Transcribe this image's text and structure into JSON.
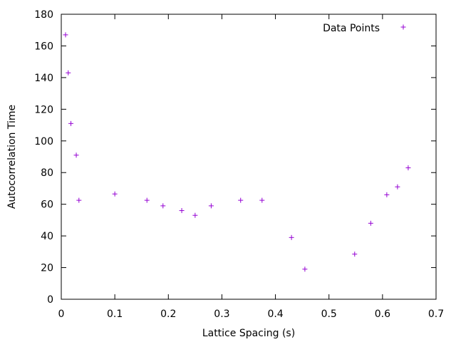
{
  "chart_data": {
    "type": "scatter",
    "xlabel": "Lattice Spacing (s)",
    "ylabel": "Autocorrelation Time",
    "xlim": [
      0,
      0.7
    ],
    "ylim": [
      0,
      180
    ],
    "x_ticks": [
      "0",
      "0.1",
      "0.2",
      "0.3",
      "0.4",
      "0.5",
      "0.6",
      "0.7"
    ],
    "y_ticks": [
      "0",
      "20",
      "40",
      "60",
      "80",
      "100",
      "120",
      "140",
      "160",
      "180"
    ],
    "legend_position": "top-right",
    "grid": false,
    "marker": "plus",
    "series": [
      {
        "name": "Data Points",
        "color": "#9400d3",
        "points": [
          {
            "x": 0.008,
            "y": 167
          },
          {
            "x": 0.013,
            "y": 143
          },
          {
            "x": 0.018,
            "y": 111
          },
          {
            "x": 0.028,
            "y": 91
          },
          {
            "x": 0.033,
            "y": 62.5
          },
          {
            "x": 0.1,
            "y": 66.5
          },
          {
            "x": 0.16,
            "y": 62.5
          },
          {
            "x": 0.19,
            "y": 59
          },
          {
            "x": 0.225,
            "y": 56
          },
          {
            "x": 0.25,
            "y": 53
          },
          {
            "x": 0.28,
            "y": 59
          },
          {
            "x": 0.335,
            "y": 62.5
          },
          {
            "x": 0.375,
            "y": 62.5
          },
          {
            "x": 0.43,
            "y": 39
          },
          {
            "x": 0.455,
            "y": 19
          },
          {
            "x": 0.548,
            "y": 28.5
          },
          {
            "x": 0.578,
            "y": 48
          },
          {
            "x": 0.608,
            "y": 66
          },
          {
            "x": 0.628,
            "y": 71
          },
          {
            "x": 0.648,
            "y": 83
          }
        ]
      }
    ]
  }
}
